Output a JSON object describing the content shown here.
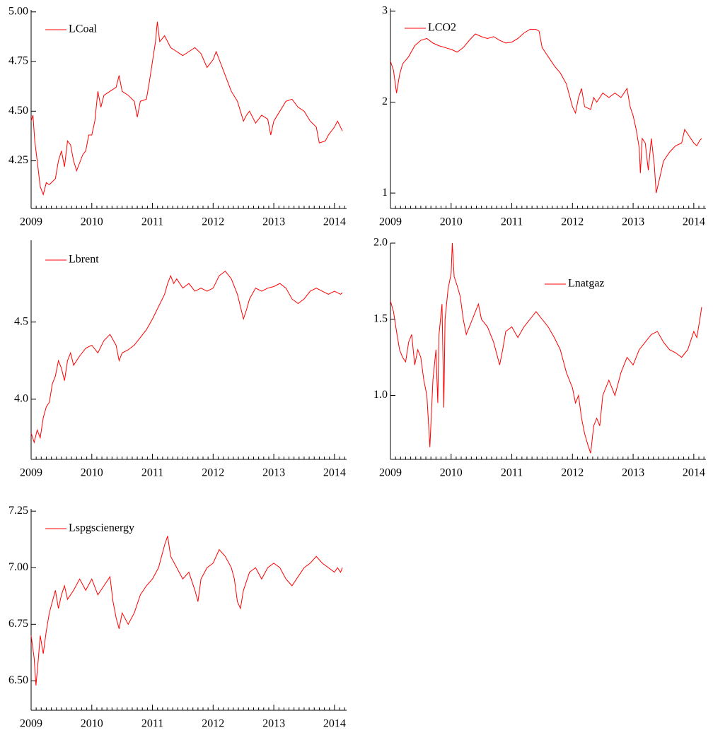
{
  "chart_data": [
    {
      "type": "line",
      "legend": "upper left",
      "xlim": [
        2009,
        2014.2
      ],
      "xticks": [
        2009,
        2010,
        2011,
        2012,
        2013,
        2014
      ],
      "ylim": [
        4.01,
        5.01
      ],
      "yticks": [
        {
          "value": 4.25,
          "label": "4.25"
        },
        {
          "value": 4.5,
          "label": "4.50"
        },
        {
          "value": 4.75,
          "label": "4.75"
        },
        {
          "value": 5,
          "label": "5.00"
        }
      ],
      "x": [
        2009.0,
        2009.03,
        2009.06,
        2009.1,
        2009.15,
        2009.2,
        2009.25,
        2009.3,
        2009.4,
        2009.45,
        2009.5,
        2009.55,
        2009.6,
        2009.65,
        2009.7,
        2009.75,
        2009.8,
        2009.85,
        2009.9,
        2009.95,
        2010.0,
        2010.05,
        2010.1,
        2010.15,
        2010.2,
        2010.3,
        2010.4,
        2010.45,
        2010.5,
        2010.6,
        2010.7,
        2010.75,
        2010.8,
        2010.9,
        2010.95,
        2011.0,
        2011.05,
        2011.08,
        2011.12,
        2011.2,
        2011.3,
        2011.4,
        2011.5,
        2011.6,
        2011.7,
        2011.8,
        2011.9,
        2012.0,
        2012.05,
        2012.1,
        2012.2,
        2012.3,
        2012.4,
        2012.5,
        2012.55,
        2012.6,
        2012.7,
        2012.8,
        2012.9,
        2012.95,
        2013.0,
        2013.1,
        2013.2,
        2013.3,
        2013.4,
        2013.5,
        2013.6,
        2013.7,
        2013.75,
        2013.85,
        2013.9,
        2014.0,
        2014.05,
        2014.1,
        2014.13
      ],
      "series": [
        {
          "name": "LCoal",
          "color": "#ff0000",
          "values": [
            4.45,
            4.48,
            4.35,
            4.25,
            4.12,
            4.08,
            4.14,
            4.13,
            4.16,
            4.25,
            4.3,
            4.22,
            4.35,
            4.33,
            4.25,
            4.2,
            4.24,
            4.28,
            4.3,
            4.38,
            4.38,
            4.45,
            4.6,
            4.52,
            4.58,
            4.6,
            4.62,
            4.68,
            4.6,
            4.58,
            4.55,
            4.47,
            4.55,
            4.56,
            4.65,
            4.75,
            4.85,
            4.95,
            4.85,
            4.88,
            4.82,
            4.8,
            4.78,
            4.8,
            4.82,
            4.79,
            4.72,
            4.76,
            4.8,
            4.76,
            4.68,
            4.6,
            4.55,
            4.45,
            4.48,
            4.5,
            4.44,
            4.48,
            4.46,
            4.38,
            4.45,
            4.5,
            4.55,
            4.56,
            4.52,
            4.5,
            4.45,
            4.42,
            4.34,
            4.35,
            4.38,
            4.42,
            4.45,
            4.42,
            4.4
          ]
        }
      ]
    },
    {
      "type": "line",
      "legend": "upper left",
      "xlim": [
        2009,
        2014.2
      ],
      "xticks": [
        2009,
        2010,
        2011,
        2012,
        2013,
        2014
      ],
      "ylim": [
        0.83,
        3.03
      ],
      "yticks": [
        1,
        2,
        3
      ],
      "x": [
        2009.0,
        2009.05,
        2009.1,
        2009.15,
        2009.2,
        2009.3,
        2009.4,
        2009.5,
        2009.6,
        2009.7,
        2009.8,
        2009.9,
        2010.0,
        2010.1,
        2010.2,
        2010.3,
        2010.4,
        2010.5,
        2010.6,
        2010.7,
        2010.8,
        2010.9,
        2011.0,
        2011.1,
        2011.2,
        2011.3,
        2011.4,
        2011.45,
        2011.5,
        2011.55,
        2011.6,
        2011.7,
        2011.8,
        2011.9,
        2012.0,
        2012.05,
        2012.1,
        2012.15,
        2012.2,
        2012.3,
        2012.35,
        2012.4,
        2012.5,
        2012.6,
        2012.7,
        2012.8,
        2012.9,
        2012.95,
        2013.0,
        2013.05,
        2013.1,
        2013.12,
        2013.15,
        2013.2,
        2013.25,
        2013.3,
        2013.35,
        2013.38,
        2013.45,
        2013.5,
        2013.6,
        2013.7,
        2013.8,
        2013.85,
        2013.9,
        2014.0,
        2014.05,
        2014.1,
        2014.13
      ],
      "series": [
        {
          "name": "LCO2",
          "color": "#ff0000",
          "values": [
            2.45,
            2.35,
            2.1,
            2.3,
            2.42,
            2.5,
            2.62,
            2.68,
            2.7,
            2.65,
            2.62,
            2.6,
            2.58,
            2.55,
            2.6,
            2.68,
            2.75,
            2.72,
            2.7,
            2.72,
            2.68,
            2.65,
            2.66,
            2.7,
            2.76,
            2.8,
            2.8,
            2.78,
            2.6,
            2.55,
            2.5,
            2.4,
            2.32,
            2.2,
            1.95,
            1.88,
            2.05,
            2.15,
            1.95,
            1.92,
            2.05,
            2.0,
            2.1,
            2.05,
            2.1,
            2.05,
            2.15,
            1.95,
            1.85,
            1.7,
            1.5,
            1.22,
            1.6,
            1.55,
            1.25,
            1.6,
            1.3,
            1.0,
            1.2,
            1.35,
            1.45,
            1.52,
            1.55,
            1.7,
            1.65,
            1.55,
            1.52,
            1.58,
            1.6
          ]
        }
      ]
    },
    {
      "type": "line",
      "legend": "upper left",
      "xlim": [
        2009,
        2014.2
      ],
      "xticks": [
        2009,
        2010,
        2011,
        2012,
        2013,
        2014
      ],
      "ylim": [
        3.61,
        5.03
      ],
      "yticks": [
        {
          "value": 4,
          "label": "4.0"
        },
        {
          "value": 4.5,
          "label": "4.5"
        }
      ],
      "x": [
        2009.0,
        2009.05,
        2009.1,
        2009.15,
        2009.2,
        2009.25,
        2009.3,
        2009.35,
        2009.4,
        2009.45,
        2009.5,
        2009.55,
        2009.6,
        2009.65,
        2009.7,
        2009.8,
        2009.9,
        2010.0,
        2010.1,
        2010.2,
        2010.3,
        2010.4,
        2010.45,
        2010.5,
        2010.6,
        2010.7,
        2010.8,
        2010.9,
        2011.0,
        2011.1,
        2011.2,
        2011.25,
        2011.3,
        2011.35,
        2011.4,
        2011.5,
        2011.6,
        2011.7,
        2011.8,
        2011.9,
        2012.0,
        2012.1,
        2012.2,
        2012.3,
        2012.4,
        2012.45,
        2012.5,
        2012.55,
        2012.6,
        2012.7,
        2012.8,
        2012.9,
        2013.0,
        2013.1,
        2013.2,
        2013.3,
        2013.4,
        2013.5,
        2013.6,
        2013.7,
        2013.8,
        2013.9,
        2014.0,
        2014.1,
        2014.13
      ],
      "series": [
        {
          "name": "Lbrent",
          "color": "#ff0000",
          "values": [
            3.78,
            3.72,
            3.8,
            3.75,
            3.88,
            3.95,
            3.98,
            4.1,
            4.15,
            4.25,
            4.2,
            4.12,
            4.25,
            4.3,
            4.22,
            4.28,
            4.33,
            4.35,
            4.3,
            4.38,
            4.42,
            4.35,
            4.25,
            4.3,
            4.32,
            4.35,
            4.4,
            4.45,
            4.52,
            4.6,
            4.68,
            4.75,
            4.8,
            4.75,
            4.78,
            4.72,
            4.75,
            4.7,
            4.72,
            4.7,
            4.72,
            4.8,
            4.83,
            4.78,
            4.68,
            4.6,
            4.52,
            4.58,
            4.65,
            4.72,
            4.7,
            4.72,
            4.73,
            4.75,
            4.72,
            4.65,
            4.62,
            4.65,
            4.7,
            4.72,
            4.7,
            4.68,
            4.7,
            4.68,
            4.69
          ]
        }
      ]
    },
    {
      "type": "line",
      "legend": "upper center",
      "xlim": [
        2009,
        2014.2
      ],
      "xticks": [
        2009,
        2010,
        2011,
        2012,
        2013,
        2014
      ],
      "ylim": [
        0.58,
        2.0
      ],
      "yticks": [
        {
          "value": 1,
          "label": "1.0"
        },
        {
          "value": 1.5,
          "label": "1.5"
        },
        {
          "value": 2,
          "label": "2.0"
        }
      ],
      "x": [
        2009.0,
        2009.05,
        2009.1,
        2009.15,
        2009.2,
        2009.25,
        2009.3,
        2009.35,
        2009.4,
        2009.45,
        2009.5,
        2009.55,
        2009.6,
        2009.63,
        2009.65,
        2009.7,
        2009.75,
        2009.78,
        2009.8,
        2009.85,
        2009.88,
        2009.9,
        2009.95,
        2010.0,
        2010.02,
        2010.05,
        2010.1,
        2010.15,
        2010.2,
        2010.25,
        2010.3,
        2010.35,
        2010.4,
        2010.45,
        2010.5,
        2010.6,
        2010.7,
        2010.8,
        2010.85,
        2010.9,
        2011.0,
        2011.1,
        2011.2,
        2011.3,
        2011.4,
        2011.5,
        2011.6,
        2011.7,
        2011.8,
        2011.9,
        2012.0,
        2012.05,
        2012.1,
        2012.15,
        2012.2,
        2012.25,
        2012.3,
        2012.35,
        2012.4,
        2012.45,
        2012.5,
        2012.6,
        2012.7,
        2012.8,
        2012.9,
        2013.0,
        2013.1,
        2013.2,
        2013.3,
        2013.4,
        2013.5,
        2013.6,
        2013.7,
        2013.8,
        2013.9,
        2014.0,
        2014.05,
        2014.1,
        2014.13
      ],
      "series": [
        {
          "name": "Lnatgaz",
          "color": "#ff0000",
          "values": [
            1.62,
            1.55,
            1.42,
            1.3,
            1.25,
            1.22,
            1.35,
            1.4,
            1.2,
            1.3,
            1.25,
            1.1,
            1.0,
            0.8,
            0.66,
            1.1,
            1.3,
            0.95,
            1.4,
            1.6,
            0.92,
            1.5,
            1.7,
            1.8,
            2.0,
            1.78,
            1.72,
            1.65,
            1.5,
            1.4,
            1.45,
            1.5,
            1.55,
            1.6,
            1.5,
            1.45,
            1.35,
            1.2,
            1.3,
            1.42,
            1.45,
            1.38,
            1.45,
            1.5,
            1.55,
            1.5,
            1.45,
            1.38,
            1.3,
            1.15,
            1.05,
            0.95,
            1.0,
            0.85,
            0.75,
            0.68,
            0.62,
            0.8,
            0.85,
            0.8,
            1.0,
            1.1,
            1.0,
            1.15,
            1.25,
            1.2,
            1.3,
            1.35,
            1.4,
            1.42,
            1.35,
            1.3,
            1.28,
            1.25,
            1.3,
            1.42,
            1.38,
            1.5,
            1.58
          ]
        }
      ]
    },
    {
      "type": "line",
      "legend": "upper left",
      "xlim": [
        2009,
        2014.2
      ],
      "xticks": [
        2009,
        2010,
        2011,
        2012,
        2013,
        2014
      ],
      "ylim": [
        6.37,
        7.26
      ],
      "yticks": [
        {
          "value": 6.5,
          "label": "6.50"
        },
        {
          "value": 6.75,
          "label": "6.75"
        },
        {
          "value": 7,
          "label": "7.00"
        },
        {
          "value": 7.25,
          "label": "7.25"
        }
      ],
      "x": [
        2009.0,
        2009.05,
        2009.08,
        2009.12,
        2009.15,
        2009.2,
        2009.25,
        2009.3,
        2009.35,
        2009.4,
        2009.45,
        2009.5,
        2009.55,
        2009.6,
        2009.7,
        2009.8,
        2009.9,
        2010.0,
        2010.1,
        2010.2,
        2010.3,
        2010.35,
        2010.4,
        2010.45,
        2010.5,
        2010.6,
        2010.7,
        2010.8,
        2010.9,
        2011.0,
        2011.1,
        2011.2,
        2011.25,
        2011.3,
        2011.4,
        2011.5,
        2011.6,
        2011.7,
        2011.75,
        2011.8,
        2011.9,
        2012.0,
        2012.1,
        2012.2,
        2012.3,
        2012.35,
        2012.4,
        2012.45,
        2012.5,
        2012.6,
        2012.7,
        2012.8,
        2012.9,
        2013.0,
        2013.1,
        2013.2,
        2013.3,
        2013.4,
        2013.5,
        2013.6,
        2013.7,
        2013.8,
        2013.9,
        2014.0,
        2014.05,
        2014.1,
        2014.13
      ],
      "series": [
        {
          "name": "Lspgscienergy",
          "color": "#ff0000",
          "values": [
            6.7,
            6.6,
            6.48,
            6.6,
            6.7,
            6.62,
            6.72,
            6.8,
            6.85,
            6.9,
            6.82,
            6.88,
            6.92,
            6.86,
            6.9,
            6.95,
            6.9,
            6.95,
            6.88,
            6.92,
            6.96,
            6.85,
            6.78,
            6.73,
            6.8,
            6.75,
            6.8,
            6.88,
            6.92,
            6.95,
            7.0,
            7.1,
            7.14,
            7.05,
            7.0,
            6.95,
            6.98,
            6.9,
            6.85,
            6.95,
            7.0,
            7.02,
            7.08,
            7.05,
            7.0,
            6.95,
            6.85,
            6.82,
            6.9,
            6.98,
            7.0,
            6.95,
            7.0,
            7.02,
            7.0,
            6.95,
            6.92,
            6.96,
            7.0,
            7.02,
            7.05,
            7.02,
            7.0,
            6.98,
            7.0,
            6.98,
            7.0
          ]
        }
      ]
    }
  ]
}
